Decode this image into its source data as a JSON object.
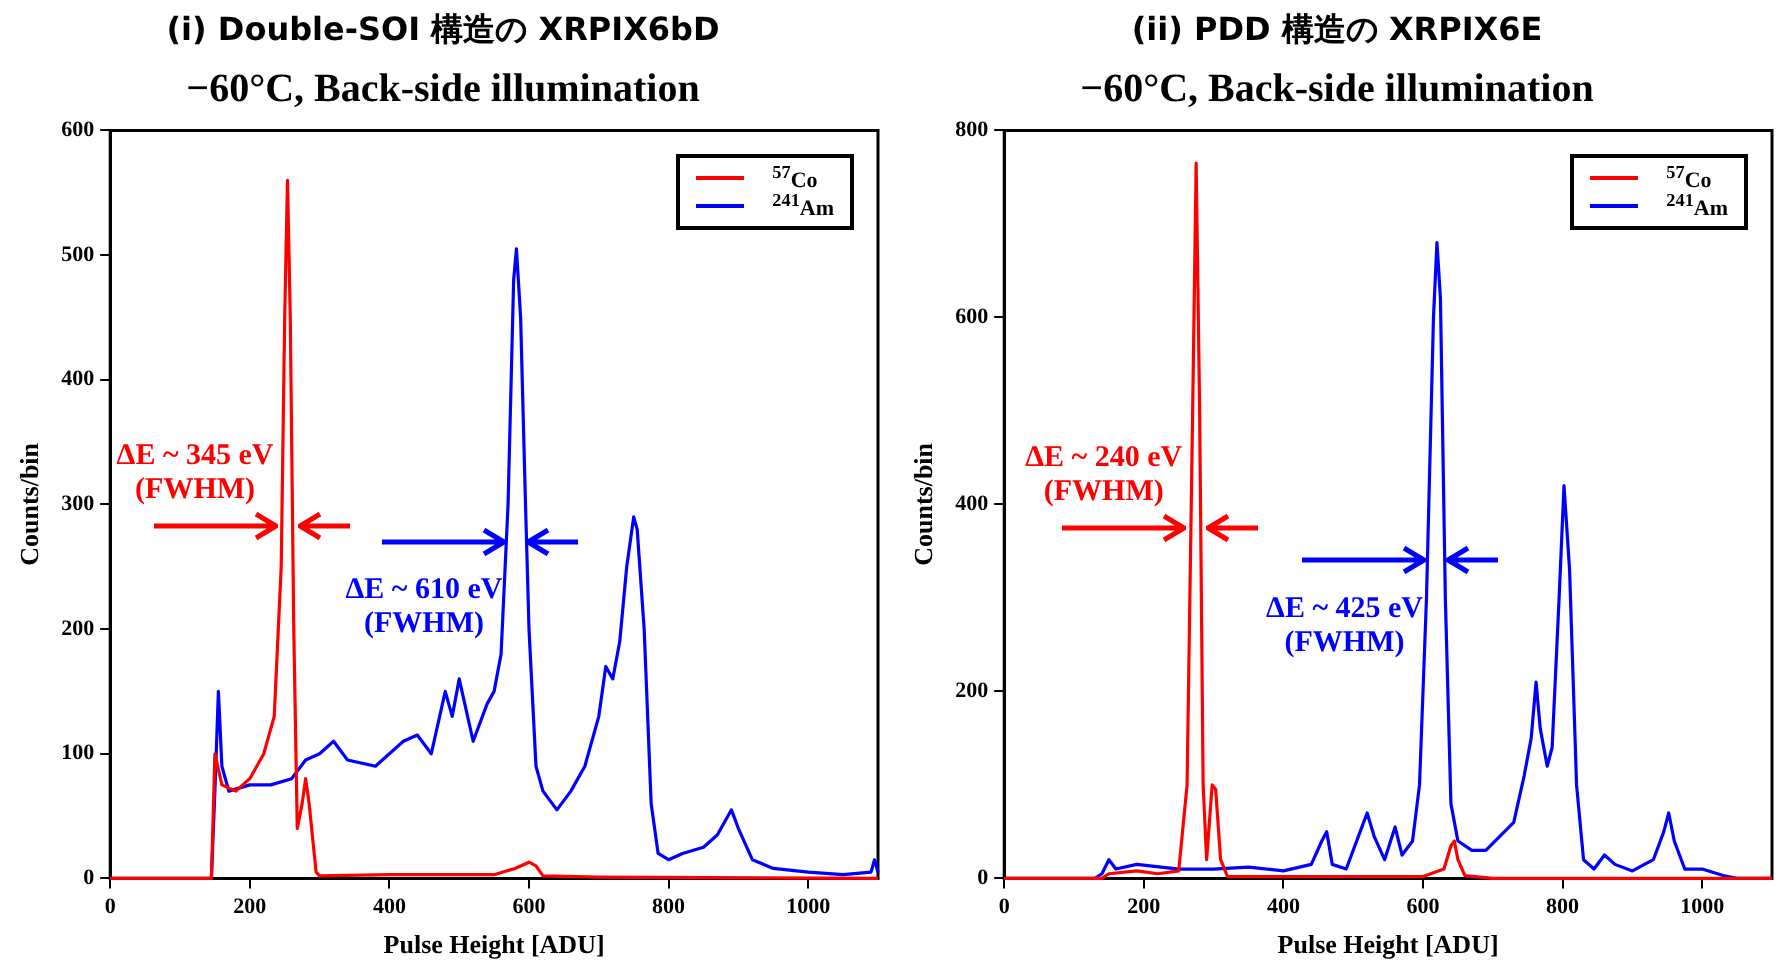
{
  "chart_data": [
    {
      "type": "line",
      "title": "(i) Double-SOI 構造の XRPIX6bD",
      "subtitle": "−60°C, Back-side illumination",
      "xlabel": "Pulse Height [ADU]",
      "ylabel": "Counts/bin",
      "xlim": [
        0,
        1100
      ],
      "xticks": [
        0,
        200,
        400,
        600,
        800,
        1000
      ],
      "ylim": [
        0,
        600
      ],
      "yticks": [
        0,
        100,
        200,
        300,
        400,
        500,
        600
      ],
      "grid": false,
      "legend": "top right",
      "marker": "none",
      "line_style": "solid",
      "annotations": [
        {
          "text": "ΔE ~ 345 eV\n(FWHM)",
          "x": 254,
          "y": 283
        },
        {
          "text": "ΔE ~ 610 eV\n(FWHM)",
          "x": 582,
          "y": 270
        }
      ],
      "series": [
        {
          "name": "$^{57}$Co",
          "color": "#ff0000",
          "x": [
            0,
            145,
            150,
            160,
            180,
            200,
            220,
            235,
            245,
            250,
            254,
            258,
            263,
            268,
            275,
            280,
            285,
            295,
            300,
            400,
            550,
            580,
            600,
            610,
            620,
            700,
            1100
          ],
          "values": [
            0,
            0,
            100,
            75,
            70,
            80,
            100,
            130,
            250,
            450,
            560,
            450,
            200,
            40,
            60,
            80,
            60,
            5,
            2,
            3,
            3,
            8,
            13,
            10,
            2,
            1,
            0
          ]
        },
        {
          "name": "$^{241}$Am",
          "color": "#0000ff",
          "x": [
            0,
            145,
            150,
            155,
            160,
            170,
            200,
            230,
            260,
            280,
            300,
            320,
            340,
            380,
            420,
            440,
            460,
            480,
            490,
            500,
            520,
            540,
            550,
            560,
            570,
            578,
            582,
            588,
            595,
            600,
            610,
            620,
            640,
            660,
            680,
            700,
            710,
            720,
            730,
            740,
            750,
            755,
            765,
            775,
            785,
            800,
            820,
            850,
            870,
            890,
            900,
            920,
            950,
            1000,
            1050,
            1090,
            1095,
            1100
          ],
          "values": [
            0,
            0,
            70,
            150,
            90,
            70,
            75,
            75,
            80,
            95,
            100,
            110,
            95,
            90,
            110,
            115,
            100,
            150,
            130,
            160,
            110,
            140,
            150,
            180,
            300,
            480,
            505,
            450,
            300,
            200,
            90,
            70,
            55,
            70,
            90,
            130,
            170,
            160,
            190,
            250,
            290,
            280,
            200,
            60,
            20,
            15,
            20,
            25,
            35,
            55,
            40,
            15,
            8,
            5,
            3,
            5,
            15,
            5
          ]
        }
      ]
    },
    {
      "type": "line",
      "title": "(ii) PDD 構造の XRPIX6E",
      "subtitle": "−60°C, Back-side illumination",
      "xlabel": "Pulse Height [ADU]",
      "ylabel": "Counts/bin",
      "xlim": [
        0,
        1100
      ],
      "xticks": [
        0,
        200,
        400,
        600,
        800,
        1000
      ],
      "ylim": [
        0,
        800
      ],
      "yticks": [
        0,
        200,
        400,
        600,
        800
      ],
      "grid": false,
      "legend": "top right",
      "marker": "none",
      "line_style": "solid",
      "annotations": [
        {
          "text": "ΔE ~ 240 eV\n(FWHM)",
          "x": 275,
          "y": 375
        },
        {
          "text": "ΔE ~ 425 eV\n(FWHM)",
          "x": 620,
          "y": 340
        }
      ],
      "series": [
        {
          "name": "$^{57}$Co",
          "color": "#ff0000",
          "x": [
            0,
            140,
            150,
            190,
            220,
            250,
            262,
            270,
            275,
            280,
            285,
            290,
            298,
            303,
            310,
            320,
            600,
            630,
            640,
            645,
            650,
            660,
            700,
            1100
          ],
          "values": [
            0,
            0,
            5,
            8,
            5,
            8,
            100,
            500,
            765,
            500,
            100,
            20,
            100,
            95,
            20,
            2,
            2,
            10,
            35,
            40,
            20,
            3,
            0,
            0
          ]
        },
        {
          "name": "$^{241}$Am",
          "color": "#0000ff",
          "x": [
            0,
            130,
            140,
            150,
            160,
            190,
            250,
            300,
            350,
            400,
            440,
            455,
            462,
            470,
            490,
            510,
            520,
            530,
            545,
            560,
            570,
            585,
            595,
            605,
            615,
            620,
            625,
            632,
            640,
            650,
            670,
            690,
            710,
            730,
            745,
            755,
            762,
            768,
            778,
            785,
            795,
            802,
            810,
            820,
            830,
            845,
            860,
            875,
            900,
            930,
            945,
            952,
            960,
            975,
            1000,
            1030,
            1050,
            1100
          ],
          "values": [
            0,
            0,
            5,
            20,
            10,
            15,
            10,
            10,
            12,
            8,
            15,
            40,
            50,
            15,
            10,
            50,
            70,
            45,
            20,
            55,
            25,
            40,
            100,
            300,
            600,
            680,
            620,
            300,
            80,
            40,
            30,
            30,
            45,
            60,
            110,
            150,
            210,
            160,
            120,
            140,
            300,
            420,
            330,
            100,
            20,
            10,
            25,
            15,
            8,
            20,
            50,
            70,
            40,
            10,
            10,
            3,
            0,
            0
          ]
        }
      ]
    }
  ]
}
